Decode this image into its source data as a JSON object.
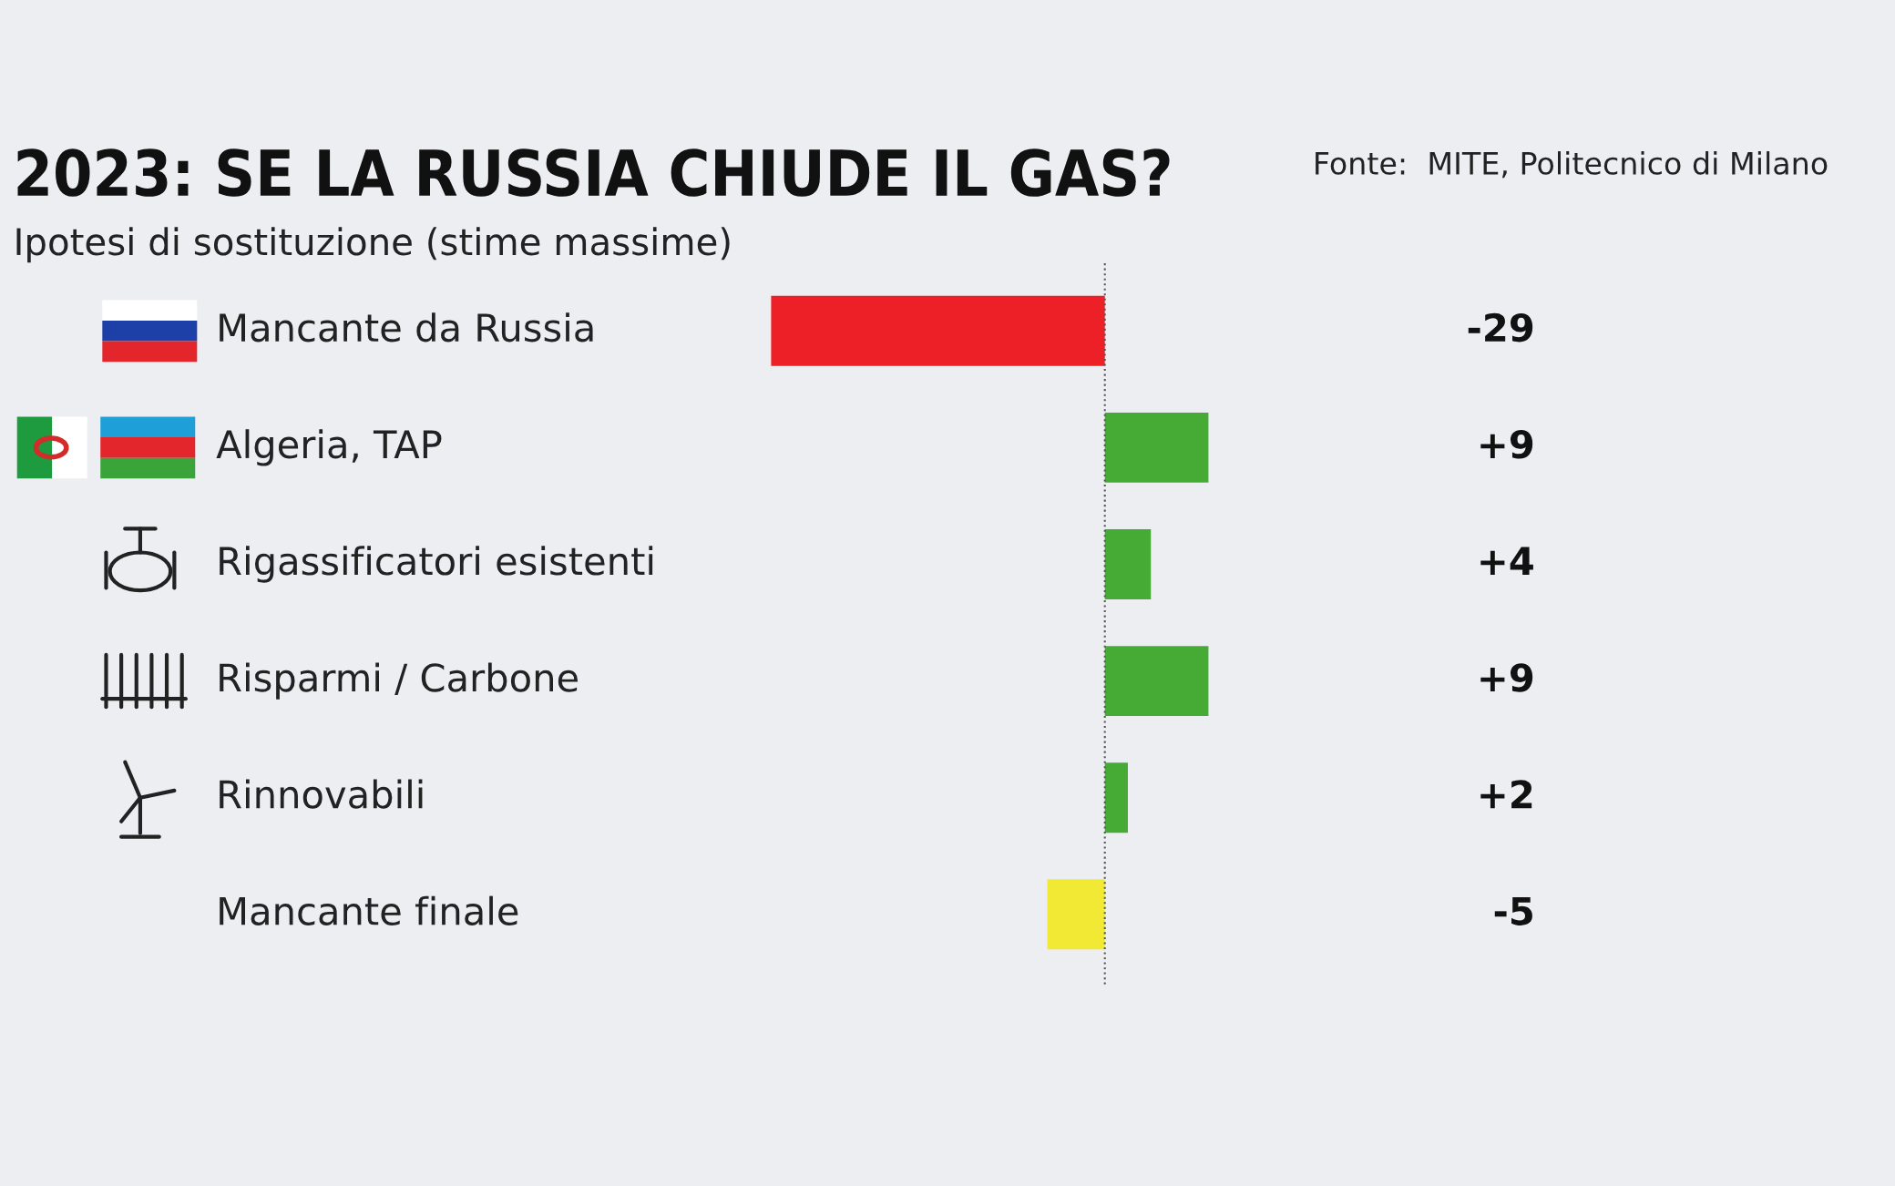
{
  "chart_data": {
    "type": "bar",
    "orientation": "horizontal",
    "title": "2023: SE LA RUSSIA CHIUDE IL GAS?",
    "subtitle": "Ipotesi di sostituzione (stime massime)",
    "annotations": [
      "Fonte:  MITE, Politecnico di Milano"
    ],
    "categories": [
      "Mancante da Russia",
      "Algeria, TAP",
      "Rigassificatori esistenti",
      "Risparmi / Carbone",
      "Rinnovabili",
      "Mancante finale"
    ],
    "values": [
      -29,
      9,
      4,
      9,
      2,
      -5
    ],
    "colors": [
      "#ed2027",
      "#45ab34",
      "#45ab34",
      "#45ab34",
      "#45ab34",
      "#f2e935"
    ],
    "value_labels": [
      "-29",
      "+9",
      "+4",
      "+9",
      "+2",
      "-5"
    ],
    "ref_lines": [
      {
        "axis": "x",
        "value": 0,
        "color": "#555555",
        "line_style": "dotted"
      }
    ]
  }
}
